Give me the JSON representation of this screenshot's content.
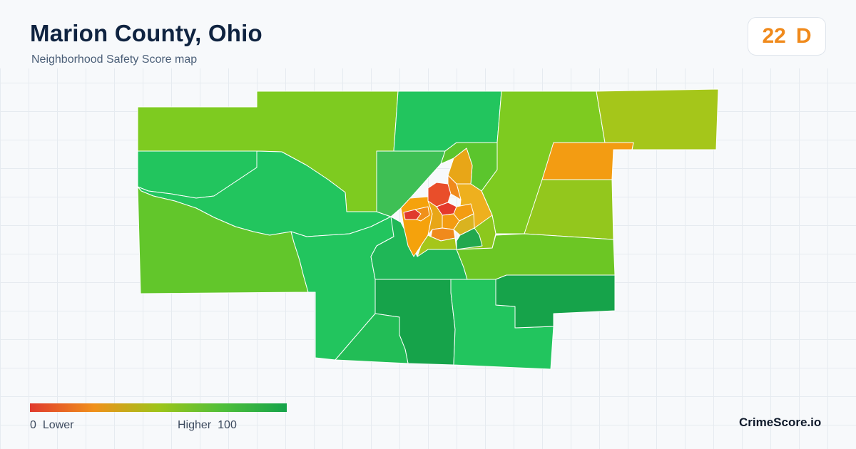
{
  "header": {
    "title": "Marion County, Ohio",
    "subtitle": "Neighborhood Safety Score map"
  },
  "score": {
    "value": "22",
    "grade": "D",
    "color": "#f08a1c"
  },
  "legend": {
    "min_value": "0",
    "min_label": "Lower",
    "max_label": "Higher",
    "max_value": "100",
    "colors": [
      "#e03a2e",
      "#f0901a",
      "#9ec419",
      "#4fbf3a",
      "#15a34a"
    ]
  },
  "brand": "CrimeScore.io",
  "colors": {
    "low": "#e03a2e",
    "orange": "#f39c12",
    "amber": "#e6a817",
    "yellow_green": "#a5c61a",
    "lime": "#7ecb20",
    "green": "#22c55e",
    "dark_green": "#16a34a"
  }
}
